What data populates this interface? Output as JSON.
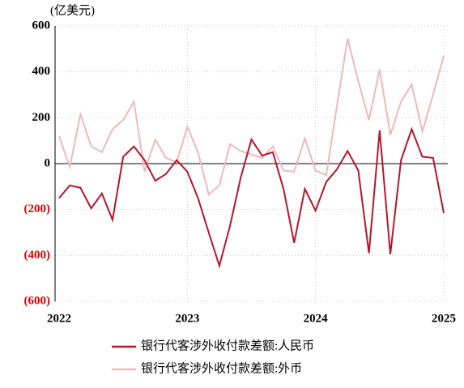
{
  "chart_data": {
    "type": "line",
    "y_unit": "(亿美元)",
    "categories": [
      "2022",
      null,
      null,
      null,
      null,
      null,
      null,
      null,
      null,
      null,
      null,
      null,
      "2023",
      null,
      null,
      null,
      null,
      null,
      null,
      null,
      null,
      null,
      null,
      null,
      "2024",
      null,
      null,
      null,
      null,
      null,
      null,
      null,
      null,
      null,
      null,
      null,
      "2025"
    ],
    "series": [
      {
        "name": "银行代客涉外收付款差额:人民币",
        "color": "#b5162b",
        "values": [
          -150,
          -95,
          -105,
          -195,
          -130,
          -245,
          30,
          75,
          15,
          -75,
          -45,
          15,
          -35,
          -150,
          -300,
          -445,
          -270,
          -60,
          105,
          35,
          50,
          -110,
          -345,
          -110,
          -205,
          -80,
          -25,
          55,
          -30,
          -390,
          145,
          -395,
          15,
          150,
          30,
          25,
          -215
        ]
      },
      {
        "name": "银行代客涉外收付款差额:外币",
        "color": "#f0b8bb",
        "values": [
          120,
          -15,
          215,
          75,
          50,
          150,
          190,
          270,
          -35,
          105,
          25,
          5,
          160,
          50,
          -135,
          -95,
          85,
          55,
          40,
          25,
          75,
          -30,
          -35,
          110,
          -30,
          -50,
          250,
          545,
          360,
          190,
          410,
          125,
          270,
          345,
          140,
          300,
          470
        ]
      }
    ],
    "ylim": [
      -600,
      600
    ],
    "yticks": [
      {
        "value": -600,
        "label": "(600)"
      },
      {
        "value": -400,
        "label": "(400)"
      },
      {
        "value": -200,
        "label": "(200)"
      },
      0,
      200,
      400,
      600
    ],
    "grid": true,
    "negative_tick_color": "#e00000",
    "legend": "bottom"
  }
}
